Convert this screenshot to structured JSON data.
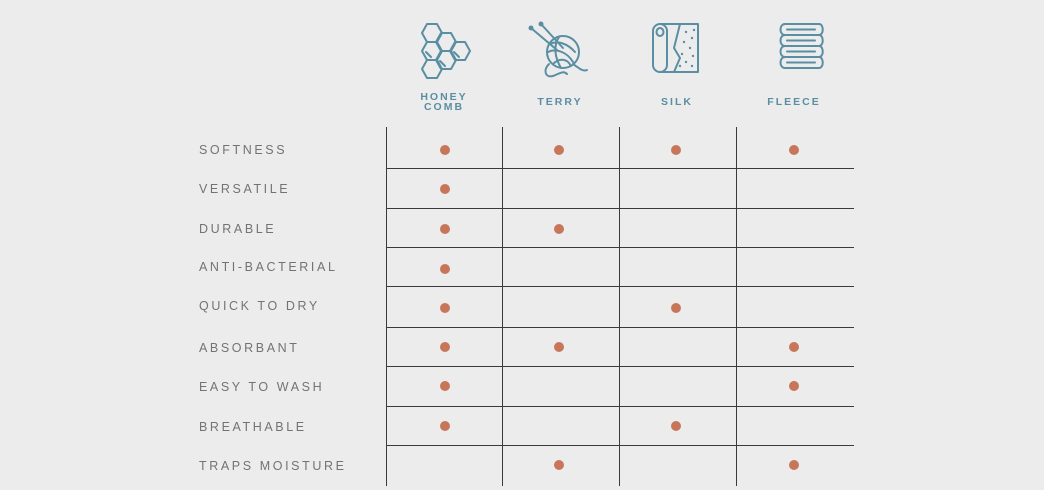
{
  "columns": [
    {
      "id": "honeycomb",
      "label": "HONEY\nCOMB",
      "icon": "honeycomb-icon"
    },
    {
      "id": "terry",
      "label": "TERRY",
      "icon": "yarn-ball-icon"
    },
    {
      "id": "silk",
      "label": "SILK",
      "icon": "fabric-roll-icon"
    },
    {
      "id": "fleece",
      "label": "FLEECE",
      "icon": "folded-towels-icon"
    }
  ],
  "rows": [
    {
      "label": "SOFTNESS",
      "marks": [
        true,
        true,
        true,
        true
      ]
    },
    {
      "label": "VERSATILE",
      "marks": [
        true,
        false,
        false,
        false
      ]
    },
    {
      "label": "DURABLE",
      "marks": [
        true,
        true,
        false,
        false
      ]
    },
    {
      "label": "ANTI-BACTERIAL",
      "marks": [
        true,
        false,
        false,
        false
      ]
    },
    {
      "label": "QUICK TO DRY",
      "marks": [
        true,
        false,
        true,
        false
      ]
    },
    {
      "label": "ABSORBANT",
      "marks": [
        true,
        true,
        false,
        true
      ]
    },
    {
      "label": "EASY TO WASH",
      "marks": [
        true,
        false,
        false,
        true
      ]
    },
    {
      "label": "BREATHABLE",
      "marks": [
        true,
        false,
        true,
        false
      ]
    },
    {
      "label": "TRAPS MOISTURE",
      "marks": [
        false,
        true,
        false,
        true
      ]
    }
  ],
  "colors": {
    "background": "#ececec",
    "dot": "#c8765a",
    "icon": "#5a8ea3",
    "row_label": "#737373",
    "grid": "#3a3a3a"
  }
}
